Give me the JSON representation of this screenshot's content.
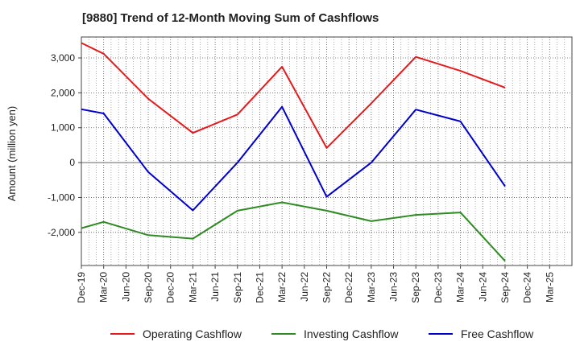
{
  "chart_data": {
    "type": "line",
    "title": "[9880]  Trend of 12-Month Moving Sum of Cashflows",
    "ylabel": "Amount (million yen)",
    "xlabel": "",
    "ylim": [
      -2950,
      3600
    ],
    "yticks": [
      3000,
      2000,
      1000,
      0,
      -1000,
      -2000
    ],
    "ytick_labels": [
      "3,000",
      "2,000",
      "1,000",
      "0",
      "-1,000",
      "-2,000"
    ],
    "categories": [
      "Dec-19",
      "Mar-20",
      "Jun-20",
      "Sep-20",
      "Dec-20",
      "Mar-21",
      "Jun-21",
      "Sep-21",
      "Dec-21",
      "Mar-22",
      "Jun-22",
      "Sep-22",
      "Dec-22",
      "Mar-23",
      "Jun-23",
      "Sep-23",
      "Dec-23",
      "Mar-24",
      "Jun-24",
      "Sep-24",
      "Dec-24",
      "Mar-25"
    ],
    "grid": true,
    "legend_position": "bottom",
    "series": [
      {
        "name": "Operating Cashflow",
        "color": "#e41a1c",
        "x": [
          "Dec-19",
          "Mar-20",
          "Sep-20",
          "Mar-21",
          "Sep-21",
          "Mar-22",
          "Sep-22",
          "Mar-23",
          "Sep-23",
          "Mar-24",
          "Sep-24"
        ],
        "values": [
          3430,
          3120,
          1830,
          850,
          1380,
          2750,
          420,
          1700,
          3030,
          2630,
          2150
        ]
      },
      {
        "name": "Investing Cashflow",
        "color": "#2e8b22",
        "x": [
          "Dec-19",
          "Mar-20",
          "Sep-20",
          "Mar-21",
          "Sep-21",
          "Mar-22",
          "Sep-22",
          "Mar-23",
          "Sep-23",
          "Mar-24",
          "Sep-24"
        ],
        "values": [
          -1880,
          -1700,
          -2080,
          -2180,
          -1380,
          -1140,
          -1380,
          -1680,
          -1500,
          -1430,
          -2820
        ]
      },
      {
        "name": "Free Cashflow",
        "color": "#0000cc",
        "x": [
          "Dec-19",
          "Mar-20",
          "Sep-20",
          "Mar-21",
          "Sep-21",
          "Mar-22",
          "Sep-22",
          "Mar-23",
          "Sep-23",
          "Mar-24",
          "Sep-24"
        ],
        "values": [
          1530,
          1410,
          -270,
          -1370,
          0,
          1600,
          -980,
          0,
          1520,
          1180,
          -680
        ]
      }
    ]
  }
}
